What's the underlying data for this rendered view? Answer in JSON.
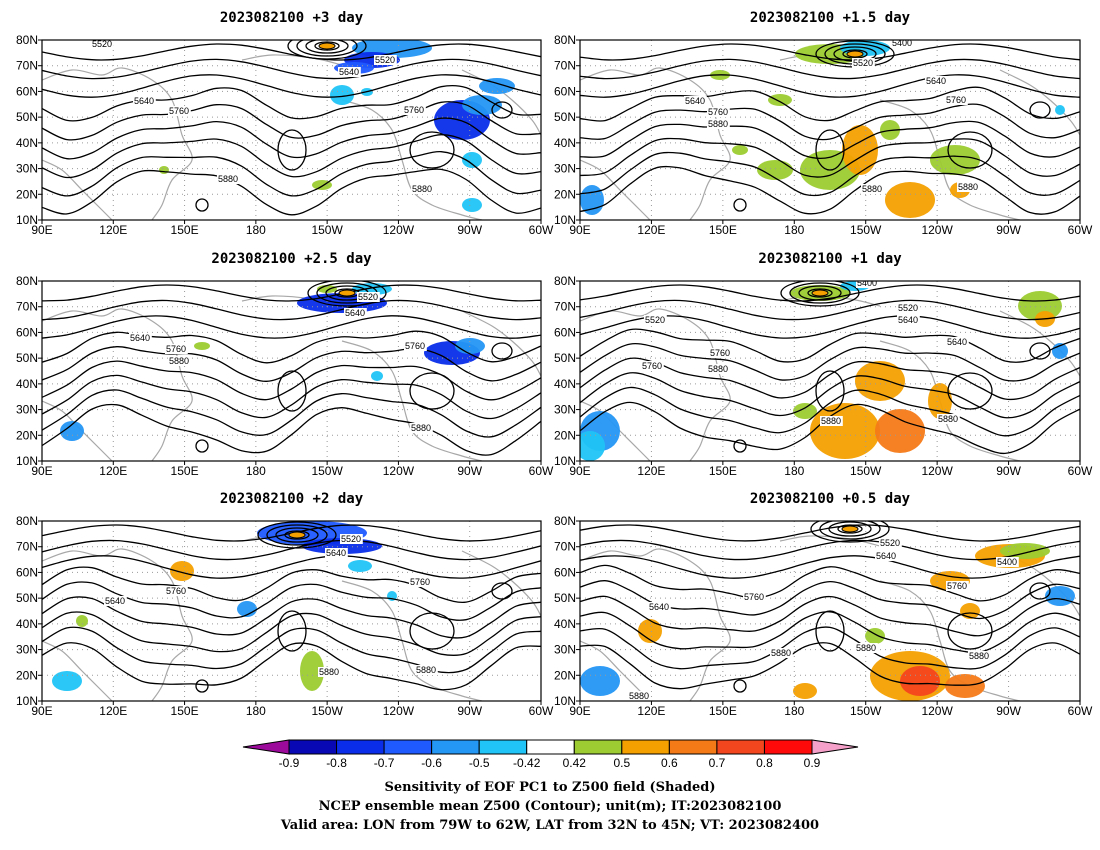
{
  "panels": [
    {
      "title": "2023082100 +3 day",
      "contour_labels": [
        "5520",
        "5520",
        "5640",
        "5640",
        "5760",
        "5760",
        "5880",
        "5880"
      ]
    },
    {
      "title": "2023082100 +1.5 day",
      "contour_labels": [
        "5400",
        "5520",
        "5640",
        "5640",
        "5760",
        "5760",
        "5880",
        "5880",
        "5880"
      ]
    },
    {
      "title": "2023082100 +2.5 day",
      "contour_labels": [
        "5520",
        "5640",
        "5640",
        "5760",
        "5760",
        "5880",
        "5880"
      ]
    },
    {
      "title": "2023082100 +1 day",
      "contour_labels": [
        "5400",
        "5520",
        "5520",
        "5640",
        "5640",
        "5760",
        "5760",
        "5880",
        "5880",
        "5880"
      ]
    },
    {
      "title": "2023082100 +2 day",
      "contour_labels": [
        "5520",
        "5640",
        "5640",
        "5760",
        "5760",
        "5880",
        "5880"
      ]
    },
    {
      "title": "2023082100 +0.5 day",
      "contour_labels": [
        "5520",
        "5640",
        "5400",
        "5640",
        "5760",
        "5760",
        "5880",
        "5880",
        "5880",
        "5880"
      ]
    }
  ],
  "axes": {
    "lat_ticks": [
      "80N",
      "70N",
      "60N",
      "50N",
      "40N",
      "30N",
      "20N",
      "10N"
    ],
    "lon_ticks": [
      "90E",
      "120E",
      "150E",
      "180",
      "150W",
      "120W",
      "90W",
      "60W"
    ]
  },
  "colorbar": {
    "labels": [
      "-0.9",
      "-0.8",
      "-0.7",
      "-0.6",
      "-0.5",
      "-0.42",
      "0.42",
      "0.5",
      "0.6",
      "0.7",
      "0.8",
      "0.9"
    ],
    "colors": [
      "#9c0a9c",
      "#0808b4",
      "#0a2dea",
      "#1f5aff",
      "#2496f4",
      "#20c4f6",
      "#ffffff",
      "#9ccc32",
      "#f4a000",
      "#f47a18",
      "#f4461e",
      "#ff0a0a",
      "#f4a0c8"
    ]
  },
  "caption": {
    "line1": "Sensitivity of EOF PC1 to Z500 field (Shaded)",
    "line2": "NCEP ensemble mean Z500 (Contour); unit(m); IT:2023082100",
    "line3": "Valid area: LON from 79W to 62W, LAT from 32N to 45N; VT: 2023082400"
  }
}
